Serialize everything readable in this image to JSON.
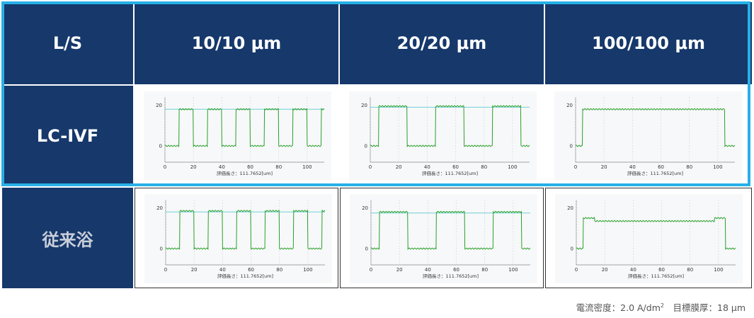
{
  "table": {
    "corner": "L/S",
    "columns": [
      "10/10 μm",
      "20/20 μm",
      "100/100 μm"
    ],
    "rows": [
      "LC-IVF",
      "従来浴"
    ]
  },
  "footnote": {
    "prefix": "電流密度：2.0 A/dm",
    "sup": "2",
    "suffix": "　目標膜厚：18 μm"
  },
  "colors": {
    "header_bg": "#16386b",
    "highlight": "#27b0e6",
    "trace": "#2aa02a",
    "reference_line": "#6fd0d8"
  },
  "chart_data": [
    {
      "type": "line",
      "row": "LC-IVF",
      "column": "10/10 μm",
      "xlabel": "評価長さ：111.7652[um]",
      "x_ticks": [
        0,
        20,
        40,
        60,
        80,
        100
      ],
      "y_ticks": [
        0,
        20
      ],
      "xlim": [
        0,
        112
      ],
      "ylim": [
        -8,
        24
      ],
      "reference_line": 18,
      "pitch": 20,
      "line_start": 10,
      "line_width": 10,
      "height": 18
    },
    {
      "type": "line",
      "row": "LC-IVF",
      "column": "20/20 μm",
      "xlabel": "評価長さ：111.7652[um]",
      "x_ticks": [
        0,
        20,
        40,
        60,
        80,
        100
      ],
      "y_ticks": [
        0,
        20
      ],
      "xlim": [
        0,
        112
      ],
      "ylim": [
        -8,
        24
      ],
      "reference_line": 19,
      "pitch": 40,
      "line_start": 6,
      "line_width": 20,
      "height": 19.5
    },
    {
      "type": "line",
      "row": "LC-IVF",
      "column": "100/100 μm",
      "xlabel": "評価長さ：111.7652[um]",
      "x_ticks": [
        0,
        20,
        40,
        60,
        80,
        100
      ],
      "y_ticks": [
        0,
        20
      ],
      "xlim": [
        0,
        112
      ],
      "ylim": [
        -8,
        24
      ],
      "reference_line": null,
      "pitch": 200,
      "line_start": 5,
      "line_width": 100,
      "height": 18
    },
    {
      "type": "line",
      "row": "従来浴",
      "column": "10/10 μm",
      "xlabel": "評価長さ：111.7652[um]",
      "x_ticks": [
        0,
        20,
        40,
        60,
        80,
        100
      ],
      "y_ticks": [
        0,
        20
      ],
      "xlim": [
        0,
        112
      ],
      "ylim": [
        -8,
        24
      ],
      "reference_line": 18,
      "pitch": 20,
      "line_start": 10,
      "line_width": 10,
      "height": 18.5
    },
    {
      "type": "line",
      "row": "従来浴",
      "column": "20/20 μm",
      "xlabel": "評価長さ：111.7652[um]",
      "x_ticks": [
        0,
        20,
        40,
        60,
        80,
        100
      ],
      "y_ticks": [
        0,
        20
      ],
      "xlim": [
        0,
        112
      ],
      "ylim": [
        -8,
        24
      ],
      "reference_line": 17.5,
      "pitch": 40,
      "line_start": 6,
      "line_width": 20,
      "height": 18
    },
    {
      "type": "line",
      "row": "従来浴",
      "column": "100/100 μm",
      "xlabel": "評価長さ：111.7652[um]",
      "x_ticks": [
        0,
        20,
        40,
        60,
        80,
        100
      ],
      "y_ticks": [
        0,
        20
      ],
      "xlim": [
        0,
        112
      ],
      "ylim": [
        -8,
        24
      ],
      "reference_line": null,
      "pitch": 200,
      "line_start": 5,
      "line_width": 100,
      "height": 13.5,
      "edge_height": 15
    }
  ]
}
